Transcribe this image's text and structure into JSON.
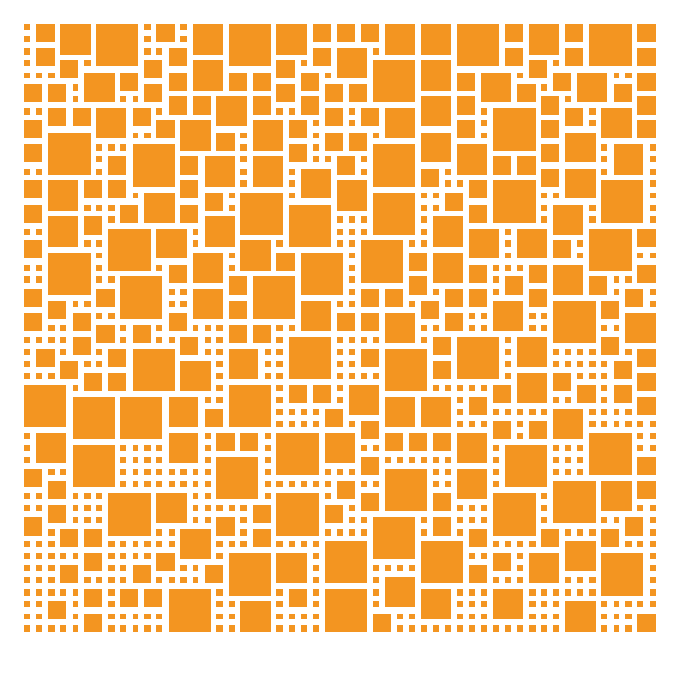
{
  "mosaic": {
    "fill_color": "#F39521",
    "background_color": "#FFFFFF",
    "grid_columns": 53,
    "grid_rows": 51,
    "seed": 7
  }
}
